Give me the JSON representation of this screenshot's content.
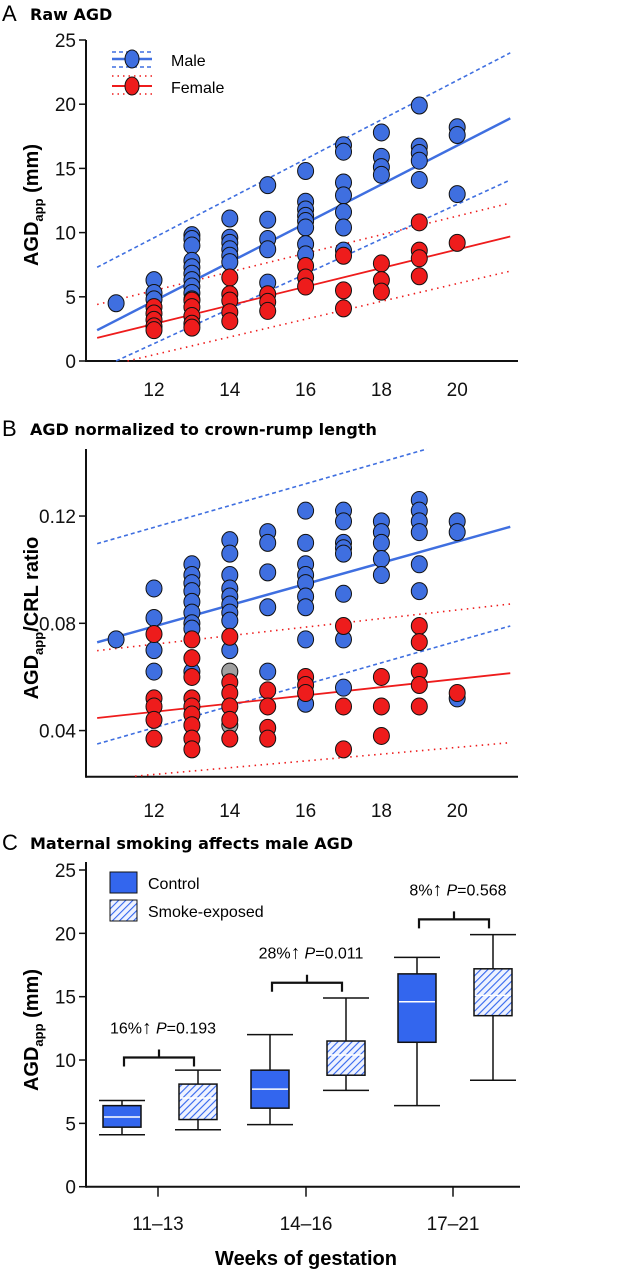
{
  "chart_data": [
    {
      "type": "scatter",
      "panel_letter": "A",
      "title": "Raw AGD",
      "ylabel_parts": [
        "AGD",
        "app",
        " (mm)"
      ],
      "xlabel": "",
      "xlim": [
        10.4,
        21.6
      ],
      "ylim": [
        0,
        25
      ],
      "xticks": [
        12,
        14,
        16,
        18,
        20
      ],
      "yticks": [
        0,
        5,
        10,
        15,
        20,
        25
      ],
      "legend_position": "top-left",
      "colors": {
        "male": "#3f6fe0",
        "female": "#ee1c1c"
      },
      "series": [
        {
          "name": "Male",
          "points": [
            [
              11,
              4.5
            ],
            [
              12,
              6.3
            ],
            [
              12,
              5.3
            ],
            [
              12,
              4.8
            ],
            [
              13,
              9.8
            ],
            [
              13,
              9.5
            ],
            [
              13,
              9.0
            ],
            [
              13,
              7.8
            ],
            [
              13,
              7.3
            ],
            [
              13,
              6.8
            ],
            [
              13,
              6.3
            ],
            [
              13,
              5.8
            ],
            [
              13,
              5.3
            ],
            [
              13,
              4.8
            ],
            [
              14,
              11.1
            ],
            [
              14,
              9.6
            ],
            [
              14,
              9.2
            ],
            [
              14,
              8.7
            ],
            [
              14,
              8.2
            ],
            [
              14,
              7.7
            ],
            [
              15,
              13.7
            ],
            [
              15,
              11.0
            ],
            [
              15,
              9.5
            ],
            [
              15,
              8.7
            ],
            [
              15,
              6.1
            ],
            [
              16,
              14.8
            ],
            [
              16,
              12.4
            ],
            [
              16,
              11.8
            ],
            [
              16,
              11.3
            ],
            [
              16,
              10.9
            ],
            [
              16,
              10.4
            ],
            [
              16,
              9.1
            ],
            [
              16,
              8.3
            ],
            [
              17,
              16.8
            ],
            [
              17,
              16.3
            ],
            [
              17,
              13.9
            ],
            [
              17,
              12.9
            ],
            [
              17,
              11.6
            ],
            [
              17,
              10.4
            ],
            [
              17,
              8.6
            ],
            [
              18,
              17.8
            ],
            [
              18,
              15.9
            ],
            [
              18,
              15.1
            ],
            [
              18,
              14.5
            ],
            [
              19,
              19.9
            ],
            [
              19,
              16.7
            ],
            [
              19,
              16.2
            ],
            [
              19,
              15.6
            ],
            [
              19,
              14.1
            ],
            [
              20,
              18.2
            ],
            [
              20,
              17.6
            ],
            [
              20,
              13.0
            ]
          ],
          "fit": [
            [
              10.5,
              2.4
            ],
            [
              21.4,
              18.9
            ]
          ],
          "upper": [
            [
              10.5,
              7.3
            ],
            [
              21.4,
              24.0
            ]
          ],
          "lower": [
            [
              11.0,
              0
            ],
            [
              21.4,
              14.1
            ]
          ]
        },
        {
          "name": "Female",
          "points": [
            [
              12,
              4.2
            ],
            [
              12,
              3.7
            ],
            [
              12,
              3.2
            ],
            [
              12,
              2.7
            ],
            [
              12,
              2.4
            ],
            [
              13,
              4.7
            ],
            [
              13,
              4.2
            ],
            [
              13,
              3.5
            ],
            [
              13,
              2.9
            ],
            [
              13,
              2.6
            ],
            [
              14,
              6.5
            ],
            [
              14,
              5.2
            ],
            [
              14,
              4.7
            ],
            [
              14,
              3.8
            ],
            [
              14,
              3.1
            ],
            [
              15,
              5.2
            ],
            [
              15,
              4.6
            ],
            [
              15,
              3.9
            ],
            [
              16,
              7.4
            ],
            [
              16,
              6.5
            ],
            [
              16,
              5.8
            ],
            [
              17,
              8.2
            ],
            [
              17,
              5.5
            ],
            [
              17,
              4.1
            ],
            [
              18,
              7.6
            ],
            [
              18,
              6.3
            ],
            [
              18,
              5.4
            ],
            [
              19,
              10.8
            ],
            [
              19,
              8.6
            ],
            [
              19,
              8.0
            ],
            [
              19,
              6.6
            ],
            [
              20,
              9.2
            ]
          ],
          "fit": [
            [
              10.5,
              1.8
            ],
            [
              21.4,
              9.7
            ]
          ],
          "upper": [
            [
              10.5,
              4.4
            ],
            [
              21.4,
              12.3
            ]
          ],
          "lower": [
            [
              11.3,
              0
            ],
            [
              21.4,
              7.0
            ]
          ]
        }
      ]
    },
    {
      "type": "scatter",
      "panel_letter": "B",
      "title": "AGD normalized to crown-rump length",
      "ylabel_parts": [
        "AGD",
        "app",
        "/CRL ratio"
      ],
      "xlabel": "",
      "xlim": [
        10.4,
        21.6
      ],
      "ylim": [
        0.0228,
        0.145
      ],
      "xticks": [
        12,
        14,
        16,
        18,
        20
      ],
      "yticks": [
        0.04,
        0.08,
        0.12
      ],
      "ytick_labels": [
        "0.04",
        "0.08",
        "0.12"
      ],
      "colors": {
        "male": "#3f6fe0",
        "female": "#ee1c1c",
        "overlap": "#a0a0a0"
      },
      "series": [
        {
          "name": "Male",
          "points": [
            [
              11,
              0.074
            ],
            [
              12,
              0.093
            ],
            [
              12,
              0.082
            ],
            [
              12,
              0.07
            ],
            [
              12,
              0.062
            ],
            [
              13,
              0.102
            ],
            [
              13,
              0.098
            ],
            [
              13,
              0.095
            ],
            [
              13,
              0.092
            ],
            [
              13,
              0.088
            ],
            [
              13,
              0.084
            ],
            [
              13,
              0.08
            ],
            [
              13,
              0.078
            ],
            [
              13,
              0.062
            ],
            [
              14,
              0.111
            ],
            [
              14,
              0.106
            ],
            [
              14,
              0.098
            ],
            [
              14,
              0.093
            ],
            [
              14,
              0.09
            ],
            [
              14,
              0.087
            ],
            [
              14,
              0.084
            ],
            [
              14,
              0.081
            ],
            [
              14,
              0.07
            ],
            [
              15,
              0.114
            ],
            [
              15,
              0.11
            ],
            [
              15,
              0.099
            ],
            [
              15,
              0.086
            ],
            [
              15,
              0.062
            ],
            [
              16,
              0.122
            ],
            [
              16,
              0.11
            ],
            [
              16,
              0.102
            ],
            [
              16,
              0.098
            ],
            [
              16,
              0.095
            ],
            [
              16,
              0.09
            ],
            [
              16,
              0.086
            ],
            [
              16,
              0.074
            ],
            [
              16,
              0.05
            ],
            [
              17,
              0.122
            ],
            [
              17,
              0.118
            ],
            [
              17,
              0.11
            ],
            [
              17,
              0.108
            ],
            [
              17,
              0.106
            ],
            [
              17,
              0.091
            ],
            [
              17,
              0.074
            ],
            [
              17,
              0.056
            ],
            [
              18,
              0.118
            ],
            [
              18,
              0.114
            ],
            [
              18,
              0.11
            ],
            [
              18,
              0.104
            ],
            [
              18,
              0.098
            ],
            [
              19,
              0.126
            ],
            [
              19,
              0.122
            ],
            [
              19,
              0.118
            ],
            [
              19,
              0.114
            ],
            [
              19,
              0.102
            ],
            [
              19,
              0.092
            ],
            [
              20,
              0.118
            ],
            [
              20,
              0.114
            ],
            [
              20,
              0.052
            ]
          ],
          "fit": [
            [
              10.5,
              0.0729
            ],
            [
              21.4,
              0.116
            ]
          ],
          "upper": [
            [
              10.5,
              0.1097
            ],
            [
              19.2,
              0.145
            ]
          ],
          "lower": [
            [
              10.5,
              0.035
            ],
            [
              21.4,
              0.079
            ]
          ]
        },
        {
          "name": "Overlap",
          "points": [
            [
              14,
              0.062
            ],
            [
              14,
              0.042
            ]
          ]
        },
        {
          "name": "Female",
          "points": [
            [
              12,
              0.076
            ],
            [
              12,
              0.052
            ],
            [
              12,
              0.049
            ],
            [
              12,
              0.044
            ],
            [
              12,
              0.037
            ],
            [
              13,
              0.074
            ],
            [
              13,
              0.067
            ],
            [
              13,
              0.06
            ],
            [
              13,
              0.052
            ],
            [
              13,
              0.049
            ],
            [
              13,
              0.046
            ],
            [
              13,
              0.042
            ],
            [
              13,
              0.037
            ],
            [
              13,
              0.033
            ],
            [
              14,
              0.075
            ],
            [
              14,
              0.058
            ],
            [
              14,
              0.054
            ],
            [
              14,
              0.049
            ],
            [
              14,
              0.044
            ],
            [
              14,
              0.037
            ],
            [
              15,
              0.055
            ],
            [
              15,
              0.049
            ],
            [
              15,
              0.041
            ],
            [
              15,
              0.037
            ],
            [
              16,
              0.06
            ],
            [
              16,
              0.057
            ],
            [
              16,
              0.054
            ],
            [
              17,
              0.079
            ],
            [
              17,
              0.049
            ],
            [
              17,
              0.033
            ],
            [
              18,
              0.06
            ],
            [
              18,
              0.049
            ],
            [
              18,
              0.038
            ],
            [
              19,
              0.079
            ],
            [
              19,
              0.073
            ],
            [
              19,
              0.062
            ],
            [
              19,
              0.057
            ],
            [
              19,
              0.049
            ],
            [
              20,
              0.054
            ]
          ],
          "fit": [
            [
              10.5,
              0.0447
            ],
            [
              21.4,
              0.0614
            ]
          ],
          "upper": [
            [
              10.5,
              0.0698
            ],
            [
              21.4,
              0.0872
            ]
          ],
          "lower": [
            [
              11.5,
              0.023
            ],
            [
              21.4,
              0.0355
            ]
          ]
        }
      ]
    },
    {
      "type": "box",
      "panel_letter": "C",
      "title": "Maternal smoking affects male AGD",
      "ylabel_parts": [
        "AGD",
        "app",
        " (mm)"
      ],
      "xlabel": "Weeks of gestation",
      "ylim": [
        0,
        25
      ],
      "yticks": [
        0,
        5,
        10,
        15,
        20,
        25
      ],
      "categories": [
        "11–13",
        "14–16",
        "17–21"
      ],
      "legend": [
        "Control",
        "Smoke-exposed"
      ],
      "legend_position": "top-left",
      "colors": {
        "control": "#3366ee",
        "hatch": "#3366ee"
      },
      "series": [
        {
          "name": "Control",
          "boxes": [
            {
              "min": 4.1,
              "q1": 4.7,
              "median": 5.5,
              "q3": 6.4,
              "max": 6.8
            },
            {
              "min": 4.9,
              "q1": 6.2,
              "median": 7.7,
              "q3": 9.2,
              "max": 12.0
            },
            {
              "min": 6.4,
              "q1": 11.4,
              "median": 14.6,
              "q3": 16.8,
              "max": 18.1
            }
          ]
        },
        {
          "name": "Smoke-exposed",
          "boxes": [
            {
              "min": 4.5,
              "q1": 5.3,
              "median": 7.0,
              "q3": 8.1,
              "max": 9.2
            },
            {
              "min": 7.6,
              "q1": 8.8,
              "median": 10.4,
              "q3": 11.5,
              "max": 14.9
            },
            {
              "min": 8.4,
              "q1": 13.5,
              "median": 15.1,
              "q3": 17.2,
              "max": 19.9
            }
          ]
        }
      ],
      "annotations": [
        {
          "percent": "16%",
          "arrow": "↑",
          "p_label": "P",
          "p_value": "=0.193",
          "bracket_y": 10.2
        },
        {
          "percent": "28%",
          "arrow": "↑",
          "p_label": "P",
          "p_value": "=0.011",
          "bracket_y": 16.1
        },
        {
          "percent": "8%",
          "arrow": "↑",
          "p_label": "P",
          "p_value": "=0.568",
          "bracket_y": 21.1
        }
      ]
    }
  ]
}
